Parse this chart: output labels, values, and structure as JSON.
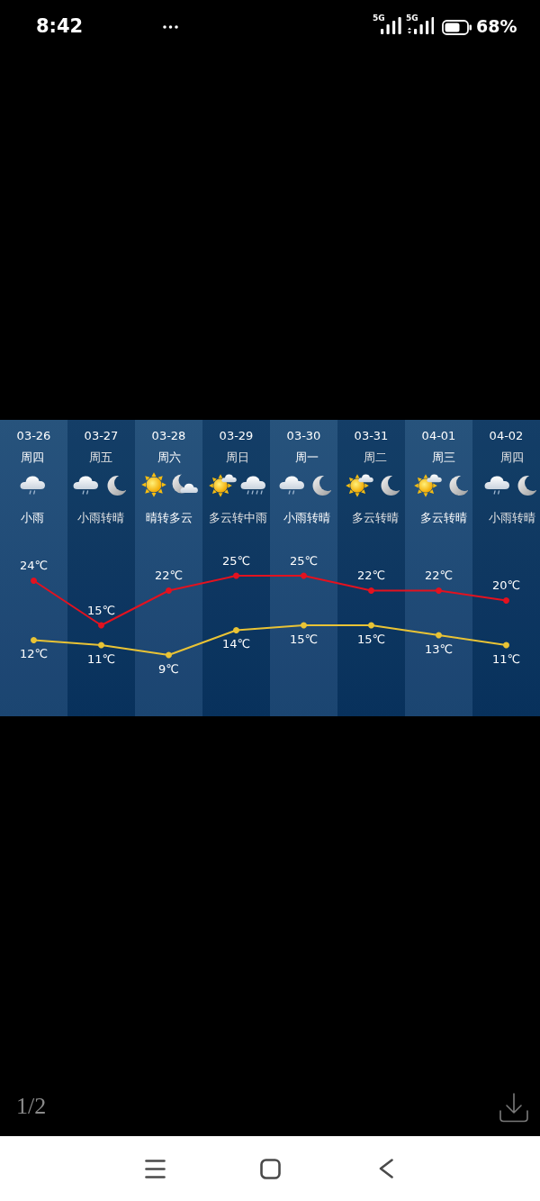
{
  "chart_data": {
    "type": "line",
    "categories": [
      "03-26",
      "03-27",
      "03-28",
      "03-29",
      "03-30",
      "03-31",
      "04-01",
      "04-02"
    ],
    "series": [
      {
        "color": "#e3121f",
        "values": [
          24,
          15,
          22,
          25,
          25,
          22,
          22,
          20
        ],
        "value_labels": [
          "24℃",
          "15℃",
          "22℃",
          "25℃",
          "25℃",
          "22℃",
          "22℃",
          "20℃"
        ]
      },
      {
        "color": "#e9c335",
        "values": [
          12,
          11,
          9,
          14,
          15,
          15,
          13,
          11
        ],
        "value_labels": [
          "12℃",
          "11℃",
          "9℃",
          "14℃",
          "15℃",
          "15℃",
          "13℃",
          "11℃"
        ]
      }
    ],
    "marker": "circle",
    "tick_labels": "x",
    "annotations": [
      "周四",
      "周五",
      "周六",
      "周日",
      "周一",
      "周二",
      "周三",
      "周四",
      "小雨",
      "小雨转晴",
      "晴转多云",
      "多云转中雨",
      "小雨转晴",
      "多云转晴",
      "多云转晴",
      "小雨转晴",
      "8:42",
      "5G",
      "5G",
      "68%",
      "1/2"
    ]
  }
}
